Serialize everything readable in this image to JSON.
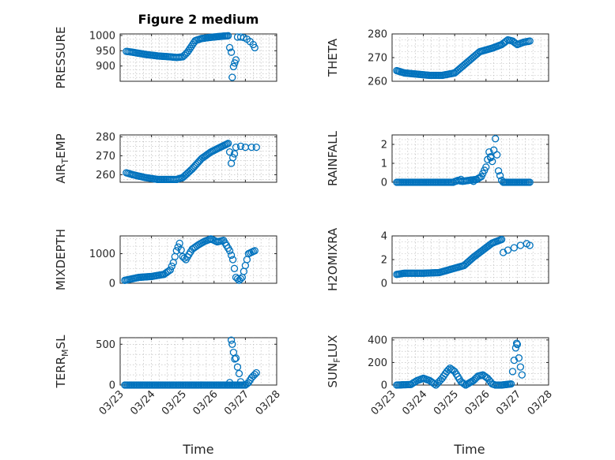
{
  "figure_title": "Figure 2 medium",
  "colors": {
    "marker": "#0072bd",
    "axes": "#262626",
    "grid": "#b5b5b5"
  },
  "chart_data": [
    {
      "type": "scatter",
      "id": "pressure",
      "ylabel": "PRESSURE",
      "ylim": [
        850,
        1005
      ],
      "yticks": [
        900,
        950,
        1000
      ],
      "yticklabels": [
        "900",
        "950",
        "1000"
      ],
      "xlim": [
        0,
        5
      ],
      "xticks": [
        0,
        1,
        2,
        3,
        4,
        5
      ],
      "xticklabels": [],
      "knots": [
        [
          0.2,
          948
        ],
        [
          0.4,
          945
        ],
        [
          0.8,
          938
        ],
        [
          1.2,
          933
        ],
        [
          1.6,
          930
        ],
        [
          1.8,
          928
        ],
        [
          2.0,
          930
        ],
        [
          2.15,
          945
        ],
        [
          2.4,
          983
        ],
        [
          2.6,
          990
        ],
        [
          2.9,
          994
        ],
        [
          3.2,
          997
        ],
        [
          3.45,
          999
        ]
      ],
      "extra": [
        [
          3.5,
          960
        ],
        [
          3.55,
          945
        ],
        [
          3.58,
          863
        ],
        [
          3.62,
          898
        ],
        [
          3.66,
          910
        ],
        [
          3.7,
          920
        ],
        [
          3.75,
          995
        ],
        [
          3.85,
          995
        ],
        [
          3.95,
          993
        ],
        [
          4.05,
          988
        ],
        [
          4.15,
          980
        ],
        [
          4.25,
          970
        ],
        [
          4.3,
          960
        ]
      ]
    },
    {
      "type": "scatter",
      "id": "theta",
      "ylabel": "THETA",
      "ylim": [
        260,
        280
      ],
      "yticks": [
        260,
        270,
        280
      ],
      "yticklabels": [
        "260",
        "270",
        "280"
      ],
      "xlim": [
        0,
        5
      ],
      "xticks": [
        0,
        1,
        2,
        3,
        4,
        5
      ],
      "xticklabels": [],
      "knots": [
        [
          0.15,
          264.5
        ],
        [
          0.4,
          263.5
        ],
        [
          0.8,
          263
        ],
        [
          1.2,
          262.5
        ],
        [
          1.6,
          262.5
        ],
        [
          2.0,
          263.5
        ],
        [
          2.4,
          268
        ],
        [
          2.8,
          272.5
        ],
        [
          3.2,
          274
        ],
        [
          3.5,
          275.5
        ],
        [
          3.7,
          277.5
        ],
        [
          3.85,
          277
        ],
        [
          4.0,
          275.5
        ],
        [
          4.2,
          276.5
        ],
        [
          4.4,
          277
        ]
      ],
      "extra": []
    },
    {
      "type": "scatter",
      "id": "air_temp",
      "ylabel": "AIR_TEMP",
      "ylim": [
        256,
        281
      ],
      "yticks": [
        260,
        270,
        280
      ],
      "yticklabels": [
        "260",
        "270",
        "280"
      ],
      "xlim": [
        0,
        5
      ],
      "xticks": [
        0,
        1,
        2,
        3,
        4,
        5
      ],
      "xticklabels": [],
      "knots": [
        [
          0.2,
          261
        ],
        [
          0.4,
          260
        ],
        [
          0.8,
          258.5
        ],
        [
          1.2,
          257.5
        ],
        [
          1.6,
          257.5
        ],
        [
          1.8,
          257.5
        ],
        [
          2.0,
          258.5
        ],
        [
          2.3,
          263
        ],
        [
          2.6,
          268.5
        ],
        [
          2.9,
          272
        ],
        [
          3.2,
          274.5
        ],
        [
          3.45,
          276.5
        ]
      ],
      "extra": [
        [
          3.5,
          272
        ],
        [
          3.55,
          266
        ],
        [
          3.6,
          269
        ],
        [
          3.65,
          271
        ],
        [
          3.7,
          274.5
        ],
        [
          3.85,
          275
        ],
        [
          4.0,
          274.5
        ],
        [
          4.2,
          274.5
        ],
        [
          4.35,
          274.5
        ]
      ]
    },
    {
      "type": "scatter",
      "id": "rainfall",
      "ylabel": "RAINFALL",
      "ylim": [
        0,
        2.5
      ],
      "yticks": [
        0,
        1,
        2
      ],
      "yticklabels": [
        "0",
        "1",
        "2"
      ],
      "xlim": [
        0,
        5
      ],
      "xticks": [
        0,
        1,
        2,
        3,
        4,
        5
      ],
      "xticklabels": [],
      "knots": [
        [
          0.15,
          0
        ],
        [
          1.95,
          0
        ],
        [
          2.1,
          0.1
        ],
        [
          2.25,
          0.05
        ],
        [
          2.45,
          0.1
        ],
        [
          2.7,
          0.15
        ],
        [
          2.85,
          0.3
        ],
        [
          3.0,
          0.8
        ],
        [
          3.1,
          1.6
        ],
        [
          3.2,
          1.1
        ],
        [
          3.3,
          2.3
        ],
        [
          3.4,
          0.6
        ],
        [
          3.5,
          0.1
        ],
        [
          3.55,
          0
        ],
        [
          4.4,
          0
        ]
      ],
      "extra": [
        [
          2.2,
          0.15
        ],
        [
          2.6,
          0.05
        ],
        [
          3.15,
          1.3
        ]
      ]
    },
    {
      "type": "scatter",
      "id": "mixdepth",
      "ylabel": "MIXDEPTH",
      "ylim": [
        0,
        1600
      ],
      "yticks": [
        0,
        1000
      ],
      "yticklabels": [
        "0",
        "1000"
      ],
      "xlim": [
        0,
        5
      ],
      "xticks": [
        0,
        1,
        2,
        3,
        4,
        5
      ],
      "xticklabels": [],
      "knots": [
        [
          0.15,
          100
        ],
        [
          0.6,
          200
        ],
        [
          1.0,
          230
        ],
        [
          1.4,
          300
        ],
        [
          1.6,
          450
        ],
        [
          1.7,
          700
        ],
        [
          1.8,
          1100
        ],
        [
          1.9,
          1350
        ],
        [
          2.0,
          900
        ],
        [
          2.1,
          800
        ],
        [
          2.3,
          1150
        ],
        [
          2.5,
          1300
        ],
        [
          2.7,
          1420
        ],
        [
          2.9,
          1500
        ],
        [
          3.1,
          1400
        ],
        [
          3.3,
          1450
        ],
        [
          3.5,
          1100
        ],
        [
          3.6,
          800
        ],
        [
          3.7,
          200
        ],
        [
          3.8,
          100
        ],
        [
          3.9,
          200
        ],
        [
          4.0,
          600
        ],
        [
          4.1,
          1000
        ],
        [
          4.3,
          1100
        ]
      ],
      "extra": []
    },
    {
      "type": "scatter",
      "id": "h2omixra",
      "ylabel": "H2OMIXRA",
      "ylim": [
        0,
        4
      ],
      "yticks": [
        0,
        2,
        4
      ],
      "yticklabels": [
        "0",
        "2",
        "4"
      ],
      "xlim": [
        0,
        5
      ],
      "xticks": [
        0,
        1,
        2,
        3,
        4,
        5
      ],
      "xticklabels": [],
      "knots": [
        [
          0.15,
          0.75
        ],
        [
          0.4,
          0.85
        ],
        [
          1.0,
          0.85
        ],
        [
          1.5,
          0.9
        ],
        [
          1.9,
          1.2
        ],
        [
          2.3,
          1.5
        ],
        [
          2.6,
          2.2
        ],
        [
          2.9,
          2.8
        ],
        [
          3.2,
          3.4
        ],
        [
          3.5,
          3.7
        ]
      ],
      "extra": [
        [
          3.55,
          2.6
        ],
        [
          3.7,
          2.8
        ],
        [
          3.9,
          3.0
        ],
        [
          4.1,
          3.2
        ],
        [
          4.3,
          3.35
        ],
        [
          4.4,
          3.2
        ]
      ]
    },
    {
      "type": "scatter",
      "id": "terr_msl",
      "ylabel": "TERR_MSL",
      "ylim": [
        0,
        580
      ],
      "yticks": [
        0,
        500
      ],
      "yticklabels": [
        "0",
        "500"
      ],
      "xlim": [
        0,
        5
      ],
      "xticks": [
        0,
        1,
        2,
        3,
        4,
        5
      ],
      "xticklabels": [
        "03/23",
        "03/24",
        "03/25",
        "03/26",
        "03/27",
        "03/28"
      ],
      "knots": [
        [
          0.15,
          0
        ],
        [
          3.55,
          0
        ],
        [
          4.0,
          0
        ],
        [
          4.1,
          30
        ],
        [
          4.2,
          90
        ],
        [
          4.3,
          130
        ],
        [
          4.35,
          150
        ]
      ],
      "extra": [
        [
          3.55,
          550
        ],
        [
          3.58,
          500
        ],
        [
          3.62,
          400
        ],
        [
          3.66,
          320
        ],
        [
          3.7,
          330
        ],
        [
          3.75,
          220
        ],
        [
          3.8,
          140
        ],
        [
          3.85,
          40
        ],
        [
          3.5,
          30
        ]
      ]
    },
    {
      "type": "scatter",
      "id": "sun_flux",
      "ylabel": "SUN_FLUX",
      "ylim": [
        0,
        420
      ],
      "yticks": [
        0,
        200,
        400
      ],
      "yticklabels": [
        "0",
        "200",
        "400"
      ],
      "xlim": [
        0,
        5
      ],
      "xticks": [
        0,
        1,
        2,
        3,
        4,
        5
      ],
      "xticklabels": [
        "03/23",
        "03/24",
        "03/25",
        "03/26",
        "03/27",
        "03/28"
      ],
      "knots": [
        [
          0.15,
          0
        ],
        [
          0.6,
          5
        ],
        [
          0.8,
          40
        ],
        [
          1.0,
          60
        ],
        [
          1.2,
          40
        ],
        [
          1.4,
          0
        ],
        [
          1.6,
          60
        ],
        [
          1.75,
          120
        ],
        [
          1.85,
          150
        ],
        [
          2.0,
          120
        ],
        [
          2.2,
          30
        ],
        [
          2.35,
          0
        ],
        [
          2.6,
          40
        ],
        [
          2.75,
          80
        ],
        [
          2.9,
          90
        ],
        [
          3.05,
          60
        ],
        [
          3.2,
          10
        ],
        [
          3.3,
          0
        ],
        [
          3.5,
          0
        ],
        [
          3.8,
          10
        ]
      ],
      "extra": [
        [
          3.85,
          120
        ],
        [
          3.9,
          220
        ],
        [
          3.95,
          330
        ],
        [
          4.0,
          360
        ],
        [
          4.05,
          240
        ],
        [
          4.1,
          160
        ],
        [
          4.15,
          90
        ],
        [
          3.98,
          370
        ]
      ]
    }
  ],
  "xlabel": "Time"
}
